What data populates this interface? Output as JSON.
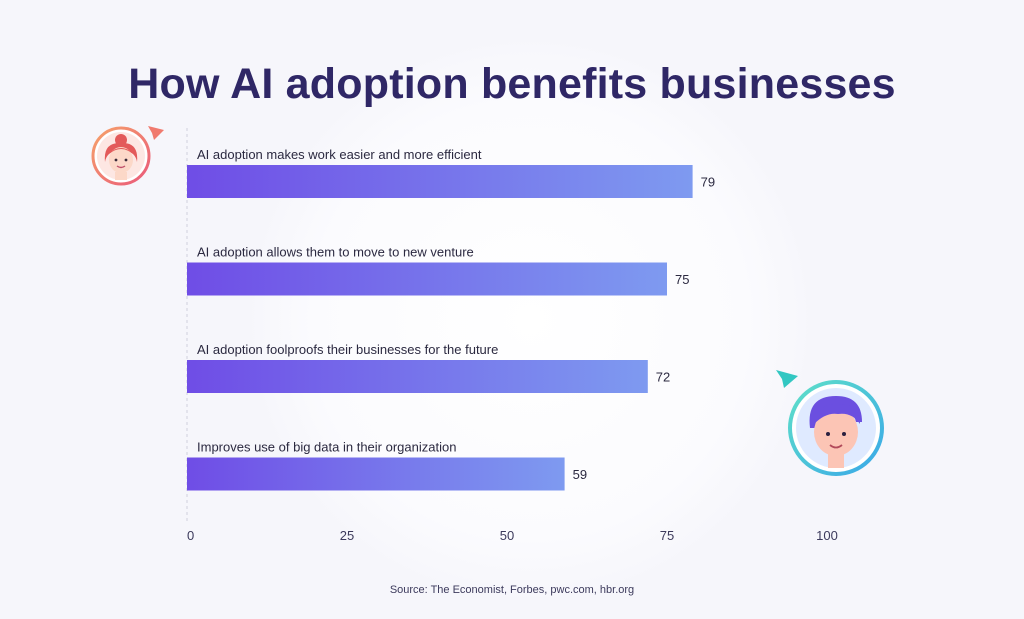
{
  "title": "How AI adoption benefits businesses",
  "source": "Source: The Economist, Forbes, pwc.com, hbr.org",
  "colors": {
    "title": "#2f2766",
    "bar_start": "#6f4de6",
    "bar_end": "#7e9af0",
    "axis_text": "#3c3a5c"
  },
  "icons": [
    "female-avatar-icon",
    "male-avatar-icon",
    "send-arrow-icon",
    "cursor-arrow-icon"
  ],
  "chart_data": {
    "type": "bar",
    "orientation": "horizontal",
    "categories": [
      "AI adoption makes work easier and more efficient",
      "AI adoption allows them to move to new venture",
      "AI adoption foolproofs their businesses for the future",
      "Improves use of big data in their organization"
    ],
    "values": [
      79,
      75,
      72,
      59
    ],
    "xlim": [
      0,
      100
    ],
    "xticks": [
      0,
      25,
      50,
      75,
      100
    ],
    "grid": false,
    "legend": "none"
  }
}
